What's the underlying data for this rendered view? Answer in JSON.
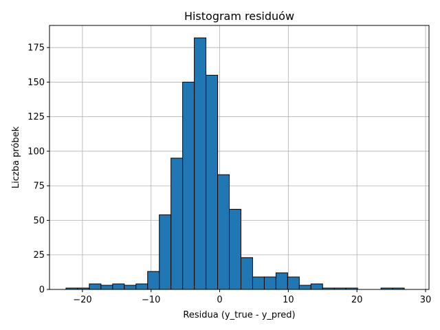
{
  "chart_data": {
    "type": "bar",
    "title": "Histogram residuów",
    "xlabel": "Residua (y_true - y_pred)",
    "ylabel": "Liczba próbek",
    "xlim": [
      -24.8,
      30.5
    ],
    "ylim": [
      0,
      191
    ],
    "grid": true,
    "bar_color": "#1f77b4",
    "edge_color": "#000000",
    "bin_edges": [
      -22.4,
      -20.7,
      -19.0,
      -17.3,
      -15.6,
      -13.9,
      -12.2,
      -10.5,
      -8.8,
      -7.1,
      -5.4,
      -3.7,
      -2.0,
      -0.3,
      1.4,
      3.1,
      4.8,
      6.5,
      8.2,
      9.9,
      11.6,
      13.3,
      15.0,
      16.7,
      18.4,
      20.1,
      21.8,
      23.5,
      25.2,
      26.9,
      28.6
    ],
    "values": [
      1,
      1,
      4,
      3,
      4,
      3,
      4,
      13,
      54,
      95,
      150,
      182,
      155,
      83,
      58,
      23,
      9,
      9,
      12,
      9,
      3,
      4,
      1,
      1,
      1,
      0,
      0,
      1,
      1,
      0
    ],
    "xticks": [
      -20,
      -10,
      0,
      10,
      20,
      30
    ],
    "xtick_labels": [
      "−20",
      "−10",
      "0",
      "10",
      "20",
      "30"
    ],
    "yticks": [
      0,
      25,
      50,
      75,
      100,
      125,
      150,
      175
    ],
    "ytick_labels": [
      "0",
      "25",
      "50",
      "75",
      "100",
      "125",
      "150",
      "175"
    ]
  }
}
